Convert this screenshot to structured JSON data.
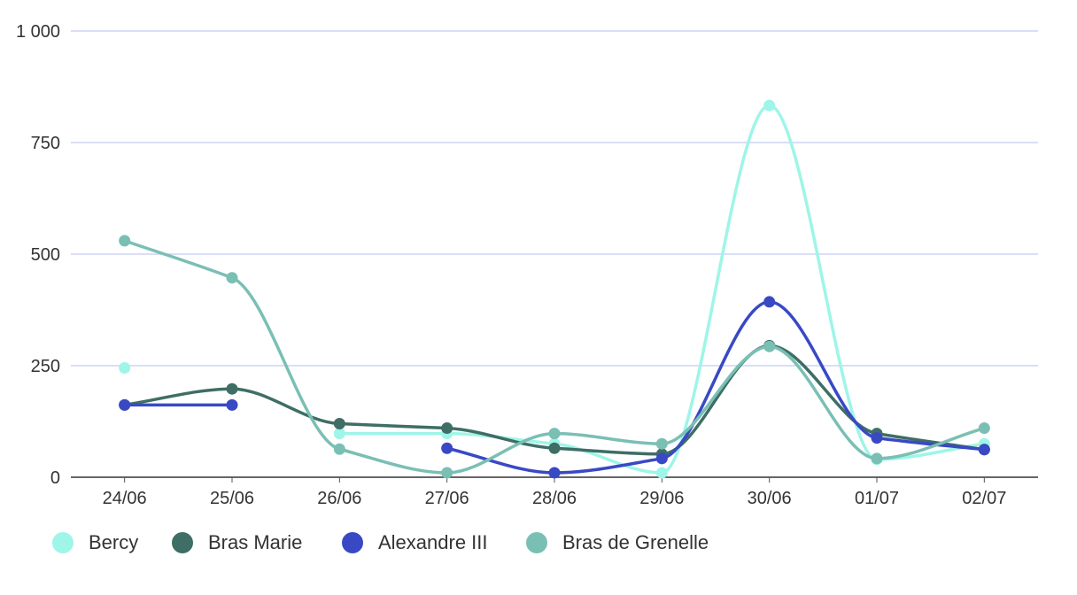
{
  "chart_data": {
    "type": "line",
    "title": "",
    "xlabel": "",
    "ylabel": "",
    "categories": [
      "24/06",
      "25/06",
      "26/06",
      "27/06",
      "28/06",
      "29/06",
      "30/06",
      "01/07",
      "02/07"
    ],
    "ylim": [
      0,
      1000
    ],
    "yticks": [
      0,
      250,
      500,
      750,
      1000
    ],
    "ytick_labels": [
      "0",
      "250",
      "500",
      "750",
      "1 000"
    ],
    "grid": true,
    "legend_position": "bottom-left",
    "series": [
      {
        "name": "Bercy",
        "color": "#9EF5E8",
        "values": [
          245,
          null,
          98,
          98,
          75,
          10,
          833,
          40,
          75
        ]
      },
      {
        "name": "Bras Marie",
        "color": "#3E6E66",
        "values": [
          162,
          198,
          120,
          110,
          65,
          52,
          295,
          98,
          62
        ]
      },
      {
        "name": "Alexandre III",
        "color": "#3949C4",
        "values": [
          162,
          162,
          null,
          65,
          10,
          42,
          393,
          88,
          62
        ]
      },
      {
        "name": "Bras de Grenelle",
        "color": "#7ABFB4",
        "values": [
          530,
          447,
          63,
          10,
          98,
          75,
          293,
          42,
          110
        ]
      }
    ]
  }
}
